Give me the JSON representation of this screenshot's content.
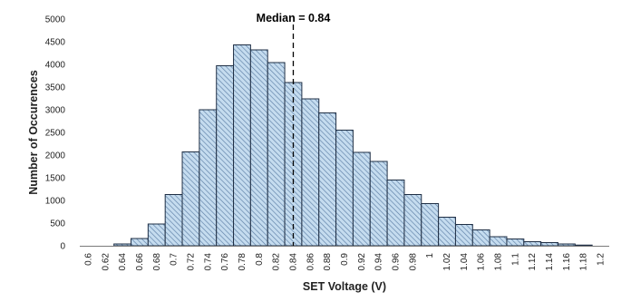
{
  "chart_data": {
    "type": "bar",
    "title": "",
    "xlabel": "SET Voltage (V)",
    "ylabel": "Number of Occurences",
    "ylim": [
      0,
      5000
    ],
    "yticks": [
      0,
      500,
      1000,
      1500,
      2000,
      2500,
      3000,
      3500,
      4000,
      4500,
      5000
    ],
    "categories": [
      "0.6",
      "0.62",
      "0.64",
      "0.66",
      "0.68",
      "0.7",
      "0.72",
      "0.74",
      "0.76",
      "0.78",
      "0.8",
      "0.82",
      "0.84",
      "0.86",
      "0.88",
      "0.9",
      "0.92",
      "0.94",
      "0.96",
      "0.98",
      "1",
      "1.02",
      "1.04",
      "1.06",
      "1.08",
      "1.1",
      "1.12",
      "1.14",
      "1.16",
      "1.18",
      "1.2"
    ],
    "values": [
      0,
      0,
      40,
      160,
      480,
      1130,
      2070,
      3000,
      3970,
      4430,
      4320,
      4040,
      3600,
      3240,
      2930,
      2550,
      2060,
      1860,
      1450,
      1130,
      930,
      630,
      470,
      350,
      200,
      150,
      90,
      70,
      40,
      15,
      0
    ],
    "grid": false,
    "legend": "none",
    "bar_fill": "#c5dcef",
    "bar_stroke": "#1f2f45",
    "hatch_color": "#5d7fa6",
    "annotation": {
      "text": "Median = 0.84",
      "x": 0.84,
      "line_style": "dashed"
    }
  }
}
